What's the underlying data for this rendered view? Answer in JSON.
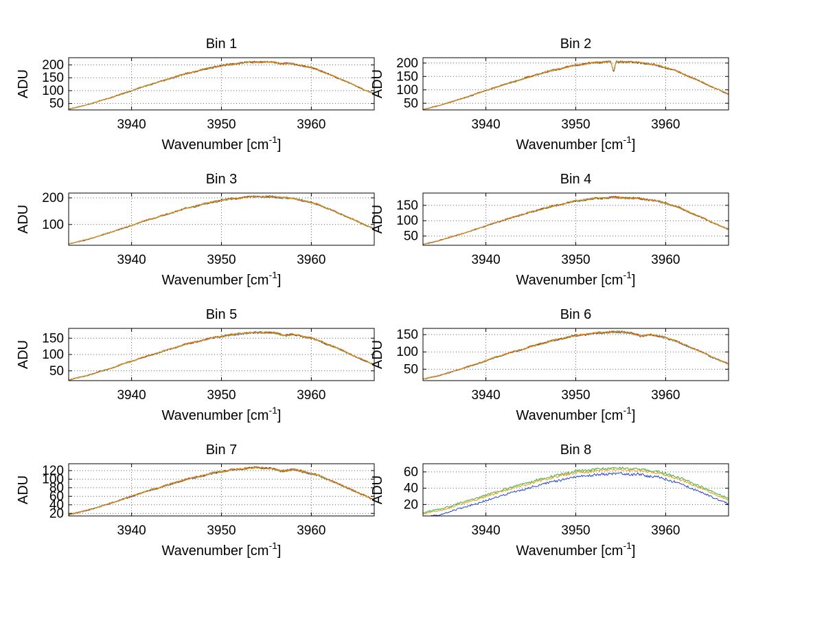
{
  "figure": {
    "background": "#ffffff",
    "axis_color": "#000000",
    "grid_color": "#606060",
    "text_color": "#000000",
    "ylabel": "ADU",
    "xlabel": {
      "main": "Wavenumber [cm",
      "sup": "-1",
      "close": "]"
    },
    "layout": {
      "rows": 4,
      "cols": 2,
      "grid": true,
      "legend": "none"
    }
  },
  "chart_data": [
    {
      "type": "line",
      "title": "Bin 1",
      "x_start": 3933,
      "x_step": 1,
      "xlim": [
        3933,
        3967
      ],
      "ylim": [
        25,
        228
      ],
      "xticks": [
        3940,
        3950,
        3960
      ],
      "yticks": [
        50,
        100,
        150,
        200
      ],
      "values": [
        28,
        36,
        45,
        55,
        66,
        76,
        89,
        100,
        112,
        123,
        134,
        144,
        155,
        165,
        174,
        182,
        191,
        197,
        202,
        207,
        210,
        212,
        211,
        210,
        208,
        204,
        197,
        189,
        178,
        163,
        148,
        134,
        117,
        102,
        87
      ],
      "series": [
        {
          "name": "line-blue",
          "color": "#2244cc",
          "offset": -0.6
        },
        {
          "name": "line-green",
          "color": "#3fae3f",
          "offset": -0.3
        },
        {
          "name": "line-red",
          "color": "#c03000",
          "offset": 0.3
        },
        {
          "name": "line-orange",
          "color": "#e39b1c",
          "offset": 0
        }
      ],
      "dips": [
        {
          "x": 3956.8,
          "depth": 4,
          "w": 0.8
        }
      ]
    },
    {
      "type": "line",
      "title": "Bin 2",
      "x_start": 3933,
      "x_step": 1,
      "xlim": [
        3933,
        3967
      ],
      "ylim": [
        25,
        220
      ],
      "xticks": [
        3940,
        3950,
        3960
      ],
      "yticks": [
        50,
        100,
        150,
        200
      ],
      "values": [
        27,
        35,
        43,
        54,
        64,
        74,
        87,
        97,
        109,
        119,
        130,
        140,
        150,
        161,
        169,
        177,
        185,
        192,
        197,
        201,
        204,
        206,
        205,
        204,
        202,
        198,
        192,
        183,
        173,
        159,
        144,
        130,
        113,
        99,
        84
      ],
      "series": [
        {
          "name": "line-blue",
          "color": "#2244cc",
          "offset": -0.6
        },
        {
          "name": "line-green",
          "color": "#3fae3f",
          "offset": -0.3
        },
        {
          "name": "line-red",
          "color": "#c03000",
          "offset": 0.3
        },
        {
          "name": "line-orange",
          "color": "#e39b1c",
          "offset": 0
        }
      ],
      "dips": [
        {
          "x": 3954.2,
          "depth": 42,
          "w": 0.28
        }
      ]
    },
    {
      "type": "line",
      "title": "Bin 3",
      "x_start": 3933,
      "x_step": 1,
      "xlim": [
        3933,
        3967
      ],
      "ylim": [
        22,
        218
      ],
      "xticks": [
        3940,
        3950,
        3960
      ],
      "yticks": [
        100,
        200
      ],
      "values": [
        27,
        35,
        43,
        53,
        64,
        74,
        86,
        96,
        109,
        119,
        129,
        139,
        150,
        160,
        168,
        176,
        184,
        191,
        196,
        200,
        203,
        205,
        204,
        203,
        201,
        197,
        191,
        182,
        172,
        158,
        143,
        129,
        113,
        98,
        84
      ],
      "series": [
        {
          "name": "line-blue",
          "color": "#2244cc",
          "offset": -0.6
        },
        {
          "name": "line-green",
          "color": "#3fae3f",
          "offset": -0.3
        },
        {
          "name": "line-red",
          "color": "#c03000",
          "offset": 0.3
        },
        {
          "name": "line-orange",
          "color": "#e39b1c",
          "offset": 0
        }
      ],
      "dips": []
    },
    {
      "type": "line",
      "title": "Bin 4",
      "x_start": 3933,
      "x_step": 1,
      "xlim": [
        3933,
        3967
      ],
      "ylim": [
        20,
        190
      ],
      "xticks": [
        3940,
        3950,
        3960
      ],
      "yticks": [
        50,
        100,
        150
      ],
      "values": [
        23,
        30,
        37,
        46,
        55,
        63,
        74,
        83,
        93,
        102,
        111,
        120,
        128,
        137,
        144,
        151,
        158,
        164,
        168,
        172,
        174,
        176,
        175,
        174,
        172,
        169,
        164,
        157,
        148,
        136,
        123,
        111,
        97,
        84,
        72
      ],
      "series": [
        {
          "name": "line-blue",
          "color": "#2244cc",
          "offset": -0.6
        },
        {
          "name": "line-green",
          "color": "#3fae3f",
          "offset": -0.3
        },
        {
          "name": "line-red",
          "color": "#c03000",
          "offset": 0.3
        },
        {
          "name": "line-orange",
          "color": "#e39b1c",
          "offset": 0
        }
      ],
      "dips": []
    },
    {
      "type": "line",
      "title": "Bin 5",
      "x_start": 3933,
      "x_step": 1,
      "xlim": [
        3933,
        3967
      ],
      "ylim": [
        20,
        180
      ],
      "xticks": [
        3940,
        3950,
        3960
      ],
      "yticks": [
        50,
        100,
        150
      ],
      "values": [
        22,
        29,
        35,
        44,
        52,
        60,
        71,
        79,
        89,
        97,
        106,
        114,
        123,
        131,
        138,
        144,
        151,
        156,
        160,
        164,
        166,
        168,
        167,
        166,
        165,
        161,
        156,
        150,
        141,
        129,
        118,
        106,
        92,
        81,
        69
      ],
      "series": [
        {
          "name": "line-blue",
          "color": "#2244cc",
          "offset": -0.6
        },
        {
          "name": "line-green",
          "color": "#3fae3f",
          "offset": -0.3
        },
        {
          "name": "line-red",
          "color": "#c03000",
          "offset": 0.3
        },
        {
          "name": "line-orange",
          "color": "#e39b1c",
          "offset": 0
        }
      ],
      "dips": [
        {
          "x": 3957.0,
          "depth": 6,
          "w": 1.0
        }
      ]
    },
    {
      "type": "line",
      "title": "Bin 6",
      "x_start": 3933,
      "x_step": 1,
      "xlim": [
        3933,
        3967
      ],
      "ylim": [
        17,
        168
      ],
      "xticks": [
        3940,
        3950,
        3960
      ],
      "yticks": [
        50,
        100,
        150
      ],
      "values": [
        21,
        27,
        33,
        41,
        49,
        57,
        66,
        74,
        84,
        92,
        100,
        107,
        115,
        123,
        130,
        136,
        142,
        147,
        151,
        154,
        156,
        158,
        157,
        156,
        155,
        152,
        147,
        141,
        133,
        122,
        111,
        100,
        87,
        76,
        65
      ],
      "series": [
        {
          "name": "line-blue",
          "color": "#2244cc",
          "offset": -0.6
        },
        {
          "name": "line-green",
          "color": "#3fae3f",
          "offset": -0.3
        },
        {
          "name": "line-red",
          "color": "#c03000",
          "offset": 0.3
        },
        {
          "name": "line-orange",
          "color": "#e39b1c",
          "offset": 0
        }
      ],
      "dips": [
        {
          "x": 3957.2,
          "depth": 9,
          "w": 1.1
        }
      ]
    },
    {
      "type": "line",
      "title": "Bin 7",
      "x_start": 3933,
      "x_step": 1,
      "xlim": [
        3933,
        3967
      ],
      "ylim": [
        14,
        136
      ],
      "xticks": [
        3940,
        3950,
        3960
      ],
      "yticks": [
        20,
        40,
        60,
        80,
        100,
        120
      ],
      "values": [
        17,
        22,
        27,
        33,
        39,
        46,
        53,
        60,
        67,
        74,
        80,
        86,
        93,
        99,
        104,
        109,
        114,
        118,
        121,
        124,
        126,
        127,
        126,
        126,
        124,
        122,
        118,
        113,
        107,
        98,
        89,
        80,
        70,
        61,
        52
      ],
      "series": [
        {
          "name": "line-blue",
          "color": "#2244cc",
          "offset": -0.6
        },
        {
          "name": "line-green",
          "color": "#3fae3f",
          "offset": -0.3
        },
        {
          "name": "line-red",
          "color": "#c03000",
          "offset": 0.3
        },
        {
          "name": "line-orange",
          "color": "#e39b1c",
          "offset": 0
        }
      ],
      "dips": [
        {
          "x": 3956.6,
          "depth": 6,
          "w": 1.3
        }
      ]
    },
    {
      "type": "line",
      "title": "Bin 8",
      "x_start": 3933,
      "x_step": 1,
      "xlim": [
        3933,
        3967
      ],
      "ylim": [
        6,
        70
      ],
      "xticks": [
        3940,
        3950,
        3960
      ],
      "yticks": [
        20,
        40,
        60
      ],
      "values": [
        8,
        11,
        13,
        16,
        20,
        23,
        26,
        30,
        33,
        37,
        40,
        43,
        46,
        49,
        52,
        54,
        57,
        59,
        60,
        61,
        62,
        63,
        63,
        62,
        62,
        60,
        59,
        56,
        53,
        49,
        44,
        40,
        35,
        30,
        26
      ],
      "series": [
        {
          "name": "line-blue",
          "color": "#2244cc",
          "offset": -5
        },
        {
          "name": "line-green",
          "color": "#3fae3f",
          "offset": 1.8
        },
        {
          "name": "line-orange",
          "color": "#e39b1c",
          "offset": 0
        }
      ],
      "dips": []
    }
  ]
}
